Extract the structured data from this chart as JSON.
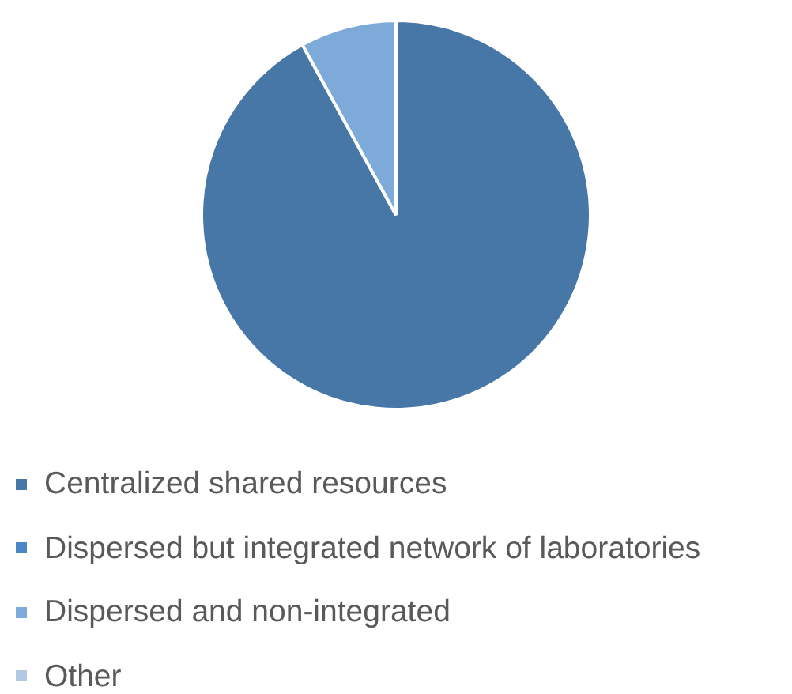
{
  "chart_data": {
    "type": "pie",
    "categories": [
      "Centralized shared resources",
      "Dispersed but integrated network of laboratories",
      "Dispersed and non-integrated",
      "Other"
    ],
    "values": [
      92,
      0,
      8,
      0
    ],
    "colors": [
      "#4677a7",
      "#4a86c5",
      "#7eaad9",
      "#b3c8e4"
    ],
    "legend": "bottom"
  }
}
